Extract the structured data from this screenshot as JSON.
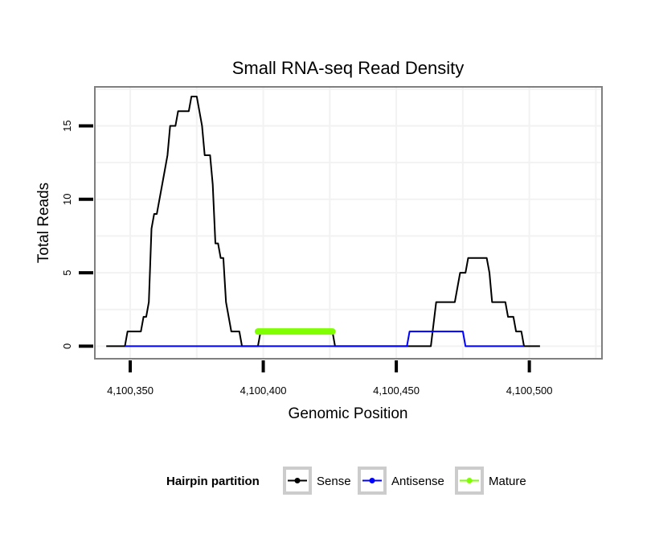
{
  "chart_data": {
    "type": "line",
    "title": "Small RNA-seq Read Density",
    "xlabel": "Genomic Position",
    "ylabel": "Total Reads",
    "xlim": [
      4100337,
      4100527
    ],
    "ylim": [
      -0.8,
      17.6
    ],
    "x_ticks": [
      4100350,
      4100400,
      4100450,
      4100500
    ],
    "x_tick_labels": [
      "4,100,350",
      "4,100,400",
      "4,100,450",
      "4,100,500"
    ],
    "y_ticks": [
      0,
      5,
      10,
      15
    ],
    "y_tick_labels": [
      "0",
      "5",
      "10",
      "15"
    ],
    "grid": true,
    "legend": {
      "title": "Hairpin partition",
      "position": "bottom"
    },
    "series": [
      {
        "name": "Sense",
        "color": "#000000",
        "points": [
          [
            4100341,
            0
          ],
          [
            4100348,
            0
          ],
          [
            4100349,
            1
          ],
          [
            4100354,
            1
          ],
          [
            4100355,
            2
          ],
          [
            4100356,
            2
          ],
          [
            4100357,
            3
          ],
          [
            4100358,
            8
          ],
          [
            4100359,
            9
          ],
          [
            4100360,
            9
          ],
          [
            4100363,
            12
          ],
          [
            4100364,
            13
          ],
          [
            4100365,
            15
          ],
          [
            4100367,
            15
          ],
          [
            4100368,
            16
          ],
          [
            4100372,
            16
          ],
          [
            4100373,
            17
          ],
          [
            4100375,
            17
          ],
          [
            4100377,
            15
          ],
          [
            4100378,
            13
          ],
          [
            4100380,
            13
          ],
          [
            4100381,
            11
          ],
          [
            4100382,
            7
          ],
          [
            4100383,
            7
          ],
          [
            4100384,
            6
          ],
          [
            4100385,
            6
          ],
          [
            4100386,
            3
          ],
          [
            4100388,
            1
          ],
          [
            4100391,
            1
          ],
          [
            4100392,
            0
          ],
          [
            4100398,
            0
          ],
          [
            4100399,
            1
          ],
          [
            4100426,
            1
          ],
          [
            4100427,
            0
          ],
          [
            4100463,
            0
          ],
          [
            4100465,
            3
          ],
          [
            4100472,
            3
          ],
          [
            4100474,
            5
          ],
          [
            4100476,
            5
          ],
          [
            4100477,
            6
          ],
          [
            4100484,
            6
          ],
          [
            4100485,
            5
          ],
          [
            4100486,
            3
          ],
          [
            4100491,
            3
          ],
          [
            4100492,
            2
          ],
          [
            4100494,
            2
          ],
          [
            4100495,
            1
          ],
          [
            4100497,
            1
          ],
          [
            4100498,
            0
          ],
          [
            4100504,
            0
          ]
        ]
      },
      {
        "name": "Antisense",
        "color": "#0000ff",
        "points": [
          [
            4100348,
            0
          ],
          [
            4100454,
            0
          ],
          [
            4100455,
            1
          ],
          [
            4100475,
            1
          ],
          [
            4100476,
            0
          ],
          [
            4100498,
            0
          ]
        ]
      },
      {
        "name": "Mature",
        "color": "#7fff00",
        "points": [
          [
            4100398,
            1
          ],
          [
            4100426,
            1
          ]
        ]
      }
    ]
  }
}
